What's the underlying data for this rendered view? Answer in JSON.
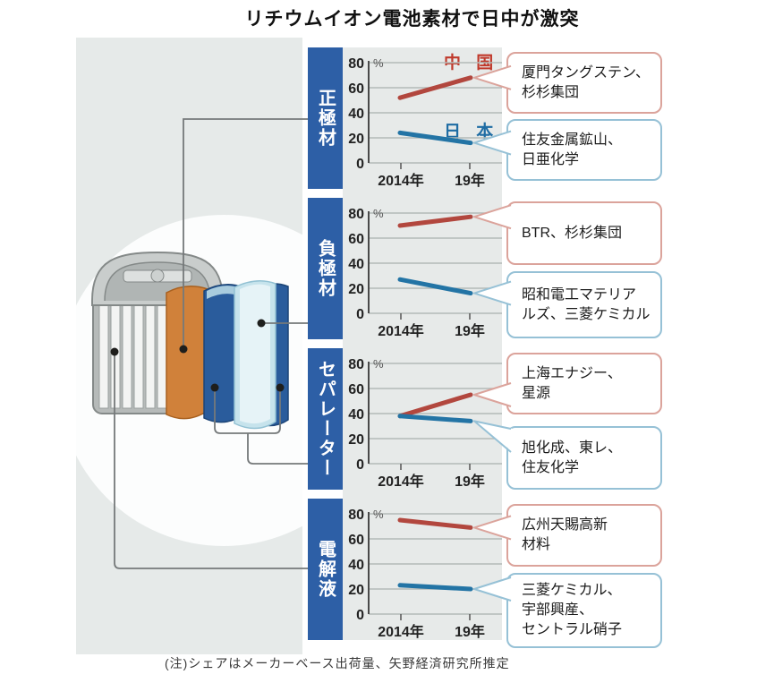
{
  "title": "リチウムイオン電池素材で日中が激突",
  "note": "(注)シェアはメーカーベース出荷量、矢野経済研究所推定",
  "legend": {
    "china": "中 国",
    "japan": "日 本"
  },
  "colors": {
    "china_line": "#b2473e",
    "japan_line": "#2374a5",
    "china_text": "#c0392b",
    "japan_text": "#1e6ca3",
    "bar_blue": "#2d5fa6",
    "box_red_border": "#dba39b",
    "box_blue_border": "#96c1d6",
    "panel_gray": "#e6eae9",
    "chart_gray": "#e7eae9"
  },
  "axis": {
    "yticks": [
      "80",
      "60",
      "40",
      "20",
      "0"
    ],
    "percent": "%",
    "xticks": [
      "2014年",
      "19年"
    ]
  },
  "sections": [
    {
      "label": "正極材",
      "china_box": "厦門タングステン、\n杉杉集団",
      "japan_box": "住友金属鉱山、\n日亜化学"
    },
    {
      "label": "負極材",
      "china_box": "BTR、杉杉集団",
      "japan_box": "昭和電工マテリア\nルズ、三菱ケミカル"
    },
    {
      "label": "セパレーター",
      "china_box": "上海エナジー、\n星源",
      "japan_box": "旭化成、東レ、\n住友化学"
    },
    {
      "label": "電解液",
      "china_box": "広州天賜高新\n材料",
      "japan_box": "三菱ケミカル、\n宇部興産、\nセントラル硝子"
    }
  ],
  "chart_data": [
    {
      "type": "line",
      "title": "正極材シェア",
      "x": [
        "2014年",
        "19年"
      ],
      "ylim": [
        0,
        80
      ],
      "unit": "%",
      "grid": true,
      "series": [
        {
          "name": "中国",
          "values": [
            52,
            68
          ]
        },
        {
          "name": "日本",
          "values": [
            24,
            16
          ]
        }
      ]
    },
    {
      "type": "line",
      "title": "負極材シェア",
      "x": [
        "2014年",
        "19年"
      ],
      "ylim": [
        0,
        80
      ],
      "unit": "%",
      "grid": true,
      "series": [
        {
          "name": "中国",
          "values": [
            70,
            77
          ]
        },
        {
          "name": "日本",
          "values": [
            27,
            16
          ]
        }
      ]
    },
    {
      "type": "line",
      "title": "セパレーターシェア",
      "x": [
        "2014年",
        "19年"
      ],
      "ylim": [
        0,
        80
      ],
      "unit": "%",
      "grid": true,
      "series": [
        {
          "name": "中国",
          "values": [
            38,
            55
          ]
        },
        {
          "name": "日本",
          "values": [
            38,
            34
          ]
        }
      ]
    },
    {
      "type": "line",
      "title": "電解液シェア",
      "x": [
        "2014年",
        "19年"
      ],
      "ylim": [
        0,
        80
      ],
      "unit": "%",
      "grid": true,
      "series": [
        {
          "name": "中国",
          "values": [
            75,
            69
          ]
        },
        {
          "name": "日本",
          "values": [
            23,
            20
          ]
        }
      ]
    }
  ]
}
